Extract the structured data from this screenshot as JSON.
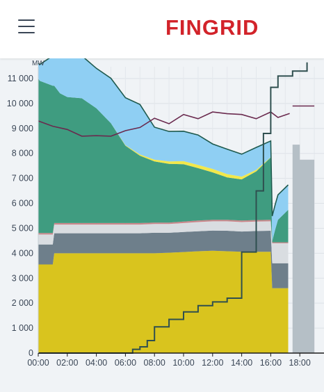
{
  "header": {
    "logo_text": "FINGRID",
    "menu_icon": "hamburger-icon"
  },
  "colors": {
    "brand": "#d2232a",
    "nuclear": "#d9c41e",
    "hydro": "#6e7f8b",
    "chp_district": "#d9dde1",
    "industrial": "#c9868a",
    "wind": "#3f9c80",
    "solar": "#f2e84b",
    "imports": "#8fcff3",
    "consumption": "#6a2a4e",
    "forecast_line": "#2f4f4f",
    "forecast_block": "#b5bfc6"
  },
  "chart_data": {
    "type": "area",
    "ylabel": "MW",
    "ylim": [
      0,
      11700
    ],
    "yticks": [
      "0",
      "1 000",
      "2 000",
      "3 000",
      "4 000",
      "5 000",
      "6 000",
      "7 000",
      "8 000",
      "9 000",
      "10 000",
      "11 000"
    ],
    "xticks": [
      "00:00",
      "02:00",
      "04:00",
      "06:00",
      "08:00",
      "10:00",
      "12:00",
      "14:00",
      "16:00",
      "18:00"
    ],
    "xlim": [
      0,
      19
    ],
    "grid": true,
    "stack_hours": [
      0,
      0.1,
      1.0,
      1.1,
      1.5,
      2,
      3,
      4,
      5,
      6,
      7,
      8,
      9,
      10,
      11,
      12,
      13,
      14,
      15,
      16,
      16.1,
      16.3,
      16.5,
      17.2
    ],
    "series": [
      {
        "values": [
          3550,
          3550,
          3550,
          4000,
          4000,
          4000,
          4000,
          4000,
          4000,
          4000,
          4000,
          4000,
          4020,
          4050,
          4080,
          4100,
          4080,
          4060,
          4060,
          4060,
          2600,
          2600,
          2600,
          2600
        ]
      },
      {
        "values": [
          800,
          800,
          800,
          800,
          800,
          800,
          800,
          800,
          800,
          800,
          800,
          820,
          800,
          800,
          800,
          810,
          820,
          810,
          830,
          840,
          1000,
          1000,
          1000,
          1000
        ]
      },
      {
        "values": [
          400,
          400,
          400,
          350,
          350,
          350,
          350,
          350,
          350,
          350,
          350,
          350,
          350,
          360,
          370,
          370,
          380,
          380,
          380,
          380,
          800,
          800,
          800,
          800
        ]
      },
      {
        "values": [
          60,
          60,
          60,
          60,
          60,
          60,
          60,
          60,
          60,
          60,
          60,
          60,
          60,
          60,
          60,
          60,
          60,
          60,
          60,
          60,
          40,
          40,
          40,
          40
        ]
      },
      {
        "values": [
          6200,
          6100,
          5900,
          5500,
          5200,
          5050,
          5000,
          4600,
          4000,
          3100,
          2700,
          2450,
          2350,
          2300,
          2100,
          1900,
          1700,
          1650,
          1950,
          2500,
          50,
          500,
          900,
          1300
        ]
      },
      {
        "values": [
          0,
          0,
          0,
          0,
          0,
          0,
          0,
          0,
          0,
          20,
          50,
          70,
          100,
          120,
          130,
          140,
          130,
          110,
          60,
          10,
          0,
          0,
          0,
          0
        ]
      },
      {
        "values": [
          600,
          650,
          1200,
          1450,
          1500,
          1700,
          1700,
          1600,
          1800,
          1900,
          2000,
          1300,
          1200,
          1200,
          1200,
          1000,
          1000,
          900,
          900,
          650,
          1000,
          1000,
          1000,
          1000
        ]
      }
    ],
    "consumption": {
      "x": [
        0,
        1,
        2,
        3,
        4,
        5,
        6,
        7,
        8,
        9,
        10,
        11,
        12,
        13,
        14,
        15,
        16,
        16.5,
        17.3
      ],
      "y": [
        9300,
        9150,
        8900,
        8750,
        8650,
        8750,
        8850,
        9100,
        9350,
        9250,
        9500,
        9450,
        9600,
        9650,
        9500,
        9450,
        9600,
        9500,
        9600
      ]
    },
    "step_series": {
      "x": [
        0,
        5.8,
        6.0,
        6.5,
        7.0,
        7.5,
        8.0,
        9.0,
        10.0,
        11.0,
        12.0,
        13.0,
        14.0,
        15.0,
        15.5,
        16.0,
        16.5,
        17.5,
        18.5
      ],
      "y": [
        0,
        0,
        0,
        150,
        250,
        500,
        1050,
        1350,
        1650,
        1900,
        2050,
        2200,
        4050,
        6500,
        8800,
        10650,
        11100,
        11300,
        11650
      ]
    },
    "forecast_bars": {
      "x": [
        17.5,
        18.0,
        19.0
      ],
      "y": [
        8350,
        7750,
        7750
      ]
    },
    "consumption_forecast": {
      "x": [
        17.5,
        19.0
      ],
      "y": [
        9900,
        9900
      ]
    }
  }
}
